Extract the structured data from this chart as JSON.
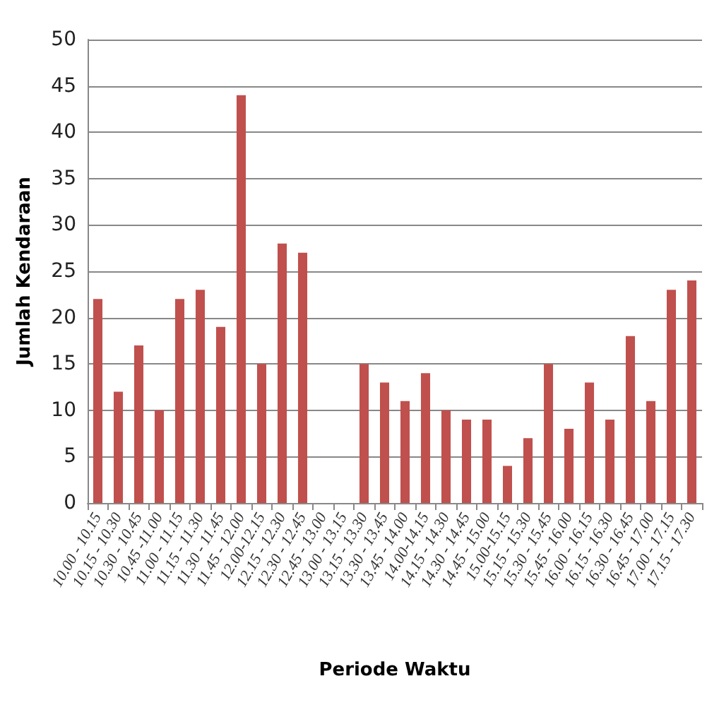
{
  "chart_data": {
    "type": "bar",
    "xlabel": "Periode Waktu",
    "ylabel": "Jumlah Kendaraan",
    "categories": [
      "10.00 - 10.15",
      "10.15 - 10.30",
      "10.30 - 10.45",
      "10.45 -11.00",
      "11.00 - 11.15",
      "11.15 - 11.30",
      "11.30 - 11.45",
      "11.45 - 12.00",
      "12.00-12.15",
      "12.15 - 12.30",
      "12.30 - 12.45",
      "12.45 - 13.00",
      "13.00 - 13.15",
      "13.15 - 13.30",
      "13.30 - 13.45",
      "13.45 - 14.00",
      "14.00-14.15",
      "14.15 - 14.30",
      "14.30 - 14.45",
      "14.45 - 15.00",
      "15.00-15.15",
      "15.15 - 15.30",
      "15.30 - 15.45",
      "15.45 - 16.00",
      "16.00 - 16.15",
      "16.15 - 16.30",
      "16.30 - 16.45",
      "16.45 - 17.00",
      "17.00 - 17.15",
      "17.15 - 17.30"
    ],
    "values": [
      22,
      12,
      17,
      10,
      22,
      23,
      19,
      44,
      15,
      28,
      27,
      null,
      null,
      15,
      13,
      11,
      14,
      10,
      9,
      9,
      4,
      7,
      15,
      8,
      13,
      9,
      18,
      11,
      23,
      24
    ],
    "color": "#c0504d",
    "ylim": [
      0,
      50
    ],
    "yticks": [
      0,
      5,
      10,
      15,
      20,
      25,
      30,
      35,
      40,
      45,
      50
    ],
    "grid": "y"
  }
}
